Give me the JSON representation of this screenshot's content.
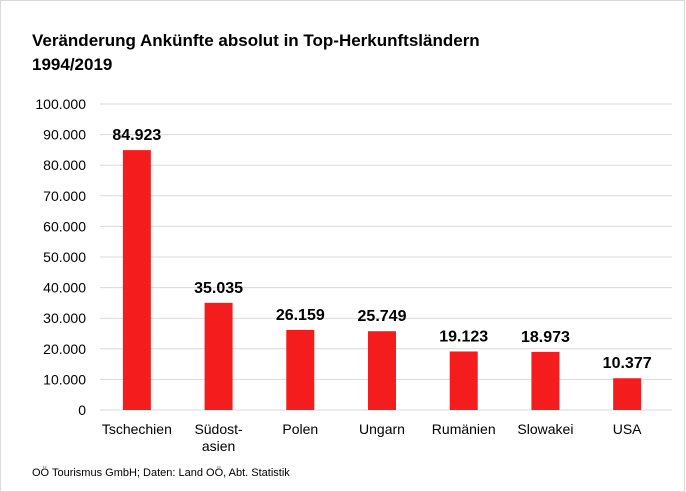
{
  "chart_data": {
    "type": "bar",
    "title": "Veränderung Ankünfte absolut in  Top-Herkunftsländern\n1994/2019",
    "categories": [
      "Tschechien",
      "Südost-\nasien",
      "Polen",
      "Ungarn",
      "Rumänien",
      "Slowakei",
      "USA"
    ],
    "values": [
      84923,
      35035,
      26159,
      25749,
      19123,
      18973,
      10377
    ],
    "value_labels": [
      "84.923",
      "35.035",
      "26.159",
      "25.749",
      "19.123",
      "18.973",
      "10.377"
    ],
    "color": "#f41c1c",
    "ylim": [
      0,
      100000
    ],
    "yticks": [
      0,
      {
        "value": 10000,
        "label": "10.000"
      },
      {
        "value": 20000,
        "label": "20.000"
      },
      {
        "value": 30000,
        "label": "30.000"
      },
      {
        "value": 40000,
        "label": "40.000"
      },
      {
        "value": 50000,
        "label": "50.000"
      },
      {
        "value": 60000,
        "label": "60.000"
      },
      {
        "value": 70000,
        "label": "70.000"
      },
      {
        "value": 80000,
        "label": "80.000"
      },
      {
        "value": 90000,
        "label": "90.000"
      },
      {
        "value": 100000,
        "label": "100.000"
      }
    ],
    "grid": true,
    "source": "OÖ Tourismus GmbH; Daten: Land OÖ, Abt. Statistik"
  }
}
